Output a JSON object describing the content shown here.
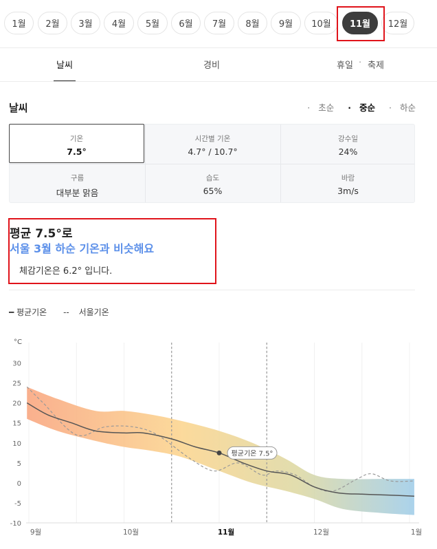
{
  "months": [
    {
      "label": "1월"
    },
    {
      "label": "2월"
    },
    {
      "label": "3월"
    },
    {
      "label": "4월"
    },
    {
      "label": "5월"
    },
    {
      "label": "6월"
    },
    {
      "label": "7월"
    },
    {
      "label": "8월"
    },
    {
      "label": "9월"
    },
    {
      "label": "10월"
    },
    {
      "label": "11월",
      "active": true
    },
    {
      "label": "12월"
    }
  ],
  "tabs": [
    {
      "label": "날씨",
      "active": true
    },
    {
      "label": "경비"
    },
    {
      "label": "휴일"
    },
    {
      "label": "축제"
    }
  ],
  "weather": {
    "title": "날씨",
    "periods": [
      {
        "label": "초순"
      },
      {
        "label": "중순",
        "active": true
      },
      {
        "label": "하순"
      }
    ],
    "stats": [
      {
        "key": "기온",
        "value": "7.5°",
        "selected": true
      },
      {
        "key": "시간별 기온",
        "value": "4.7° / 10.7°"
      },
      {
        "key": "강수일",
        "value": "24%"
      },
      {
        "key": "구름",
        "value": "대부분 맑음"
      },
      {
        "key": "습도",
        "value": "65%"
      },
      {
        "key": "바람",
        "value": "3m/s"
      }
    ]
  },
  "summary": {
    "line1": "평균 7.5°로",
    "line2": "서울 3월 하순 기온과 비슷해요",
    "line3": "체감기온은 6.2° 입니다."
  },
  "legend": {
    "avg": "평균기온",
    "seoul": "서울기온"
  },
  "colors": {
    "accent": "#5b8fe9",
    "highlight": "#e0131a",
    "active_pill": "#3d3d3d"
  },
  "chart_data": {
    "type": "line",
    "unit": "°C",
    "ylim": [
      -10,
      30
    ],
    "yticks": [
      -10,
      -5,
      0,
      5,
      10,
      15,
      20,
      25,
      30
    ],
    "xticks": [
      {
        "x": 0,
        "label": "9월"
      },
      {
        "x": 1,
        "label": "10월"
      },
      {
        "x": 2,
        "label": "11월",
        "bold": true
      },
      {
        "x": 3,
        "label": "12월"
      },
      {
        "x": 4,
        "label": "1월"
      }
    ],
    "marker": {
      "x": 2,
      "y": 7.5,
      "label": "평균기온 7.5°"
    },
    "dashed_verticals": [
      1.5,
      2.5
    ],
    "series": [
      {
        "name": "평균기온",
        "x": [
          -0.02,
          0.2,
          0.45,
          0.7,
          1.0,
          1.2,
          1.5,
          1.75,
          2.0,
          2.25,
          2.5,
          2.75,
          3.0,
          3.25,
          3.5,
          3.75,
          4.05
        ],
        "values": [
          20,
          17,
          15,
          13,
          12.5,
          12.5,
          11,
          9,
          7.5,
          5,
          3,
          2,
          -1,
          -2.5,
          -2.8,
          -3,
          -3.3
        ]
      },
      {
        "name": "서울기온",
        "x": [
          -0.02,
          0.15,
          0.5,
          0.8,
          1.1,
          1.35,
          1.7,
          1.95,
          2.2,
          2.45,
          2.6,
          2.8,
          3.0,
          3.2,
          3.45,
          3.6,
          3.8,
          4.05
        ],
        "values": [
          24,
          20,
          12,
          14,
          14,
          12,
          6,
          3,
          5,
          2,
          3,
          2,
          -1,
          -2,
          1,
          2.3,
          0.5,
          0.5
        ]
      },
      {
        "name": "범위 상단",
        "x": [
          -0.02,
          0.3,
          0.7,
          1.0,
          1.3,
          1.6,
          2.0,
          2.35,
          2.7,
          3.0,
          3.3,
          3.7,
          4.05
        ],
        "values": [
          24,
          21,
          18,
          18,
          17,
          15.5,
          13,
          10,
          6,
          2,
          1,
          1,
          1
        ]
      },
      {
        "name": "범위 하단",
        "x": [
          -0.02,
          0.3,
          0.7,
          1.0,
          1.3,
          1.6,
          2.0,
          2.35,
          2.7,
          3.0,
          3.3,
          3.7,
          4.05
        ],
        "values": [
          16,
          13,
          10.5,
          9,
          8,
          6.5,
          3,
          0,
          -2,
          -4,
          -6.5,
          -7.5,
          -8
        ]
      }
    ]
  }
}
